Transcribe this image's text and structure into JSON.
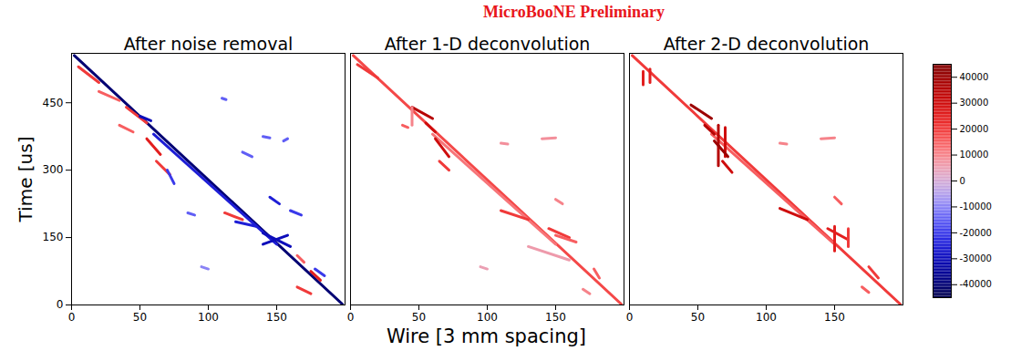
{
  "chart_data": {
    "type": "heatmap",
    "title": "MicroBooNE Preliminary",
    "xlabel": "Wire [3 mm spacing]",
    "ylabel": "Time [us]",
    "xlim": [
      0,
      200
    ],
    "ylim": [
      0,
      560
    ],
    "xticks": [
      0,
      50,
      100,
      150
    ],
    "yticks": [
      0,
      150,
      300,
      450
    ],
    "colorbar": {
      "lim": [
        -45000,
        45000
      ],
      "ticks": [
        -40000,
        -30000,
        -20000,
        -10000,
        0,
        10000,
        20000,
        30000,
        40000
      ]
    },
    "panels": [
      {
        "title": "After noise removal",
        "tracks": [
          {
            "x1": 2,
            "y1": 555,
            "x2": 198,
            "y2": 2,
            "value": -40000
          },
          {
            "x1": 60,
            "y1": 380,
            "x2": 150,
            "y2": 135,
            "value": -25000
          },
          {
            "x1": 5,
            "y1": 530,
            "x2": 20,
            "y2": 495,
            "value": 20000
          },
          {
            "x1": 20,
            "y1": 475,
            "x2": 35,
            "y2": 455,
            "value": 15000
          },
          {
            "x1": 40,
            "y1": 440,
            "x2": 55,
            "y2": 405,
            "value": 20000
          },
          {
            "x1": 50,
            "y1": 420,
            "x2": 58,
            "y2": 410,
            "value": -30000
          },
          {
            "x1": 35,
            "y1": 400,
            "x2": 45,
            "y2": 385,
            "value": 15000
          },
          {
            "x1": 55,
            "y1": 370,
            "x2": 65,
            "y2": 335,
            "value": 25000
          },
          {
            "x1": 62,
            "y1": 320,
            "x2": 72,
            "y2": 290,
            "value": 20000
          },
          {
            "x1": 70,
            "y1": 300,
            "x2": 75,
            "y2": 270,
            "value": -20000
          },
          {
            "x1": 110,
            "y1": 460,
            "x2": 113,
            "y2": 457,
            "value": -15000
          },
          {
            "x1": 140,
            "y1": 375,
            "x2": 145,
            "y2": 372,
            "value": -15000
          },
          {
            "x1": 155,
            "y1": 365,
            "x2": 158,
            "y2": 370,
            "value": -15000
          },
          {
            "x1": 125,
            "y1": 340,
            "x2": 132,
            "y2": 330,
            "value": -15000
          },
          {
            "x1": 145,
            "y1": 240,
            "x2": 152,
            "y2": 225,
            "value": -25000
          },
          {
            "x1": 160,
            "y1": 210,
            "x2": 168,
            "y2": 200,
            "value": -20000
          },
          {
            "x1": 85,
            "y1": 205,
            "x2": 90,
            "y2": 200,
            "value": -15000
          },
          {
            "x1": 112,
            "y1": 205,
            "x2": 125,
            "y2": 190,
            "value": 20000
          },
          {
            "x1": 120,
            "y1": 185,
            "x2": 135,
            "y2": 175,
            "value": -25000
          },
          {
            "x1": 140,
            "y1": 160,
            "x2": 160,
            "y2": 130,
            "value": -30000
          },
          {
            "x1": 140,
            "y1": 135,
            "x2": 158,
            "y2": 155,
            "value": -30000
          },
          {
            "x1": 165,
            "y1": 110,
            "x2": 170,
            "y2": 95,
            "value": 15000
          },
          {
            "x1": 175,
            "y1": 75,
            "x2": 182,
            "y2": 55,
            "value": 25000
          },
          {
            "x1": 178,
            "y1": 80,
            "x2": 185,
            "y2": 65,
            "value": -20000
          },
          {
            "x1": 165,
            "y1": 40,
            "x2": 175,
            "y2": 25,
            "value": 20000
          },
          {
            "x1": 95,
            "y1": 85,
            "x2": 100,
            "y2": 80,
            "value": -10000
          }
        ]
      },
      {
        "title": "After 1-D deconvolution",
        "tick_labels": "x",
        "tracks": [
          {
            "x1": 2,
            "y1": 555,
            "x2": 198,
            "y2": 2,
            "value": 18000
          },
          {
            "x1": 60,
            "y1": 380,
            "x2": 150,
            "y2": 135,
            "value": 12000
          },
          {
            "x1": 5,
            "y1": 535,
            "x2": 20,
            "y2": 505,
            "value": 20000
          },
          {
            "x1": 45,
            "y1": 440,
            "x2": 60,
            "y2": 415,
            "value": 35000
          },
          {
            "x1": 55,
            "y1": 405,
            "x2": 62,
            "y2": 385,
            "value": 30000
          },
          {
            "x1": 62,
            "y1": 370,
            "x2": 72,
            "y2": 330,
            "value": 30000
          },
          {
            "x1": 65,
            "y1": 320,
            "x2": 72,
            "y2": 300,
            "value": 20000
          },
          {
            "x1": 38,
            "y1": 400,
            "x2": 42,
            "y2": 395,
            "value": 15000
          },
          {
            "x1": 45,
            "y1": 440,
            "x2": 45,
            "y2": 400,
            "value": 10000
          },
          {
            "x1": 110,
            "y1": 360,
            "x2": 115,
            "y2": 358,
            "value": 8000
          },
          {
            "x1": 140,
            "y1": 370,
            "x2": 150,
            "y2": 372,
            "value": 8000
          },
          {
            "x1": 150,
            "y1": 235,
            "x2": 155,
            "y2": 225,
            "value": 10000
          },
          {
            "x1": 110,
            "y1": 210,
            "x2": 130,
            "y2": 190,
            "value": 20000
          },
          {
            "x1": 145,
            "y1": 170,
            "x2": 160,
            "y2": 150,
            "value": 20000
          },
          {
            "x1": 150,
            "y1": 155,
            "x2": 165,
            "y2": 140,
            "value": 15000
          },
          {
            "x1": 130,
            "y1": 130,
            "x2": 160,
            "y2": 100,
            "value": 6000
          },
          {
            "x1": 178,
            "y1": 80,
            "x2": 182,
            "y2": 60,
            "value": 15000
          },
          {
            "x1": 170,
            "y1": 35,
            "x2": 175,
            "y2": 25,
            "value": 10000
          },
          {
            "x1": 95,
            "y1": 85,
            "x2": 100,
            "y2": 80,
            "value": 5000
          }
        ]
      },
      {
        "title": "After 2-D deconvolution",
        "tick_labels": "x",
        "tracks": [
          {
            "x1": 2,
            "y1": 555,
            "x2": 198,
            "y2": 2,
            "value": 20000
          },
          {
            "x1": 60,
            "y1": 380,
            "x2": 150,
            "y2": 135,
            "value": 15000
          },
          {
            "x1": 10,
            "y1": 520,
            "x2": 10,
            "y2": 490,
            "value": 25000
          },
          {
            "x1": 15,
            "y1": 525,
            "x2": 15,
            "y2": 495,
            "value": 25000
          },
          {
            "x1": 45,
            "y1": 445,
            "x2": 60,
            "y2": 415,
            "value": 40000
          },
          {
            "x1": 65,
            "y1": 400,
            "x2": 65,
            "y2": 310,
            "value": 35000
          },
          {
            "x1": 70,
            "y1": 395,
            "x2": 70,
            "y2": 330,
            "value": 30000
          },
          {
            "x1": 55,
            "y1": 400,
            "x2": 62,
            "y2": 380,
            "value": 35000
          },
          {
            "x1": 62,
            "y1": 365,
            "x2": 72,
            "y2": 330,
            "value": 40000
          },
          {
            "x1": 68,
            "y1": 320,
            "x2": 75,
            "y2": 295,
            "value": 30000
          },
          {
            "x1": 150,
            "y1": 240,
            "x2": 155,
            "y2": 225,
            "value": 15000
          },
          {
            "x1": 110,
            "y1": 215,
            "x2": 130,
            "y2": 190,
            "value": 30000
          },
          {
            "x1": 145,
            "y1": 170,
            "x2": 160,
            "y2": 145,
            "value": 25000
          },
          {
            "x1": 150,
            "y1": 175,
            "x2": 150,
            "y2": 120,
            "value": 25000
          },
          {
            "x1": 160,
            "y1": 170,
            "x2": 160,
            "y2": 130,
            "value": 20000
          },
          {
            "x1": 175,
            "y1": 85,
            "x2": 182,
            "y2": 60,
            "value": 20000
          },
          {
            "x1": 170,
            "y1": 40,
            "x2": 175,
            "y2": 28,
            "value": 15000
          },
          {
            "x1": 110,
            "y1": 360,
            "x2": 115,
            "y2": 358,
            "value": 10000
          },
          {
            "x1": 140,
            "y1": 370,
            "x2": 150,
            "y2": 372,
            "value": 10000
          }
        ]
      }
    ]
  }
}
